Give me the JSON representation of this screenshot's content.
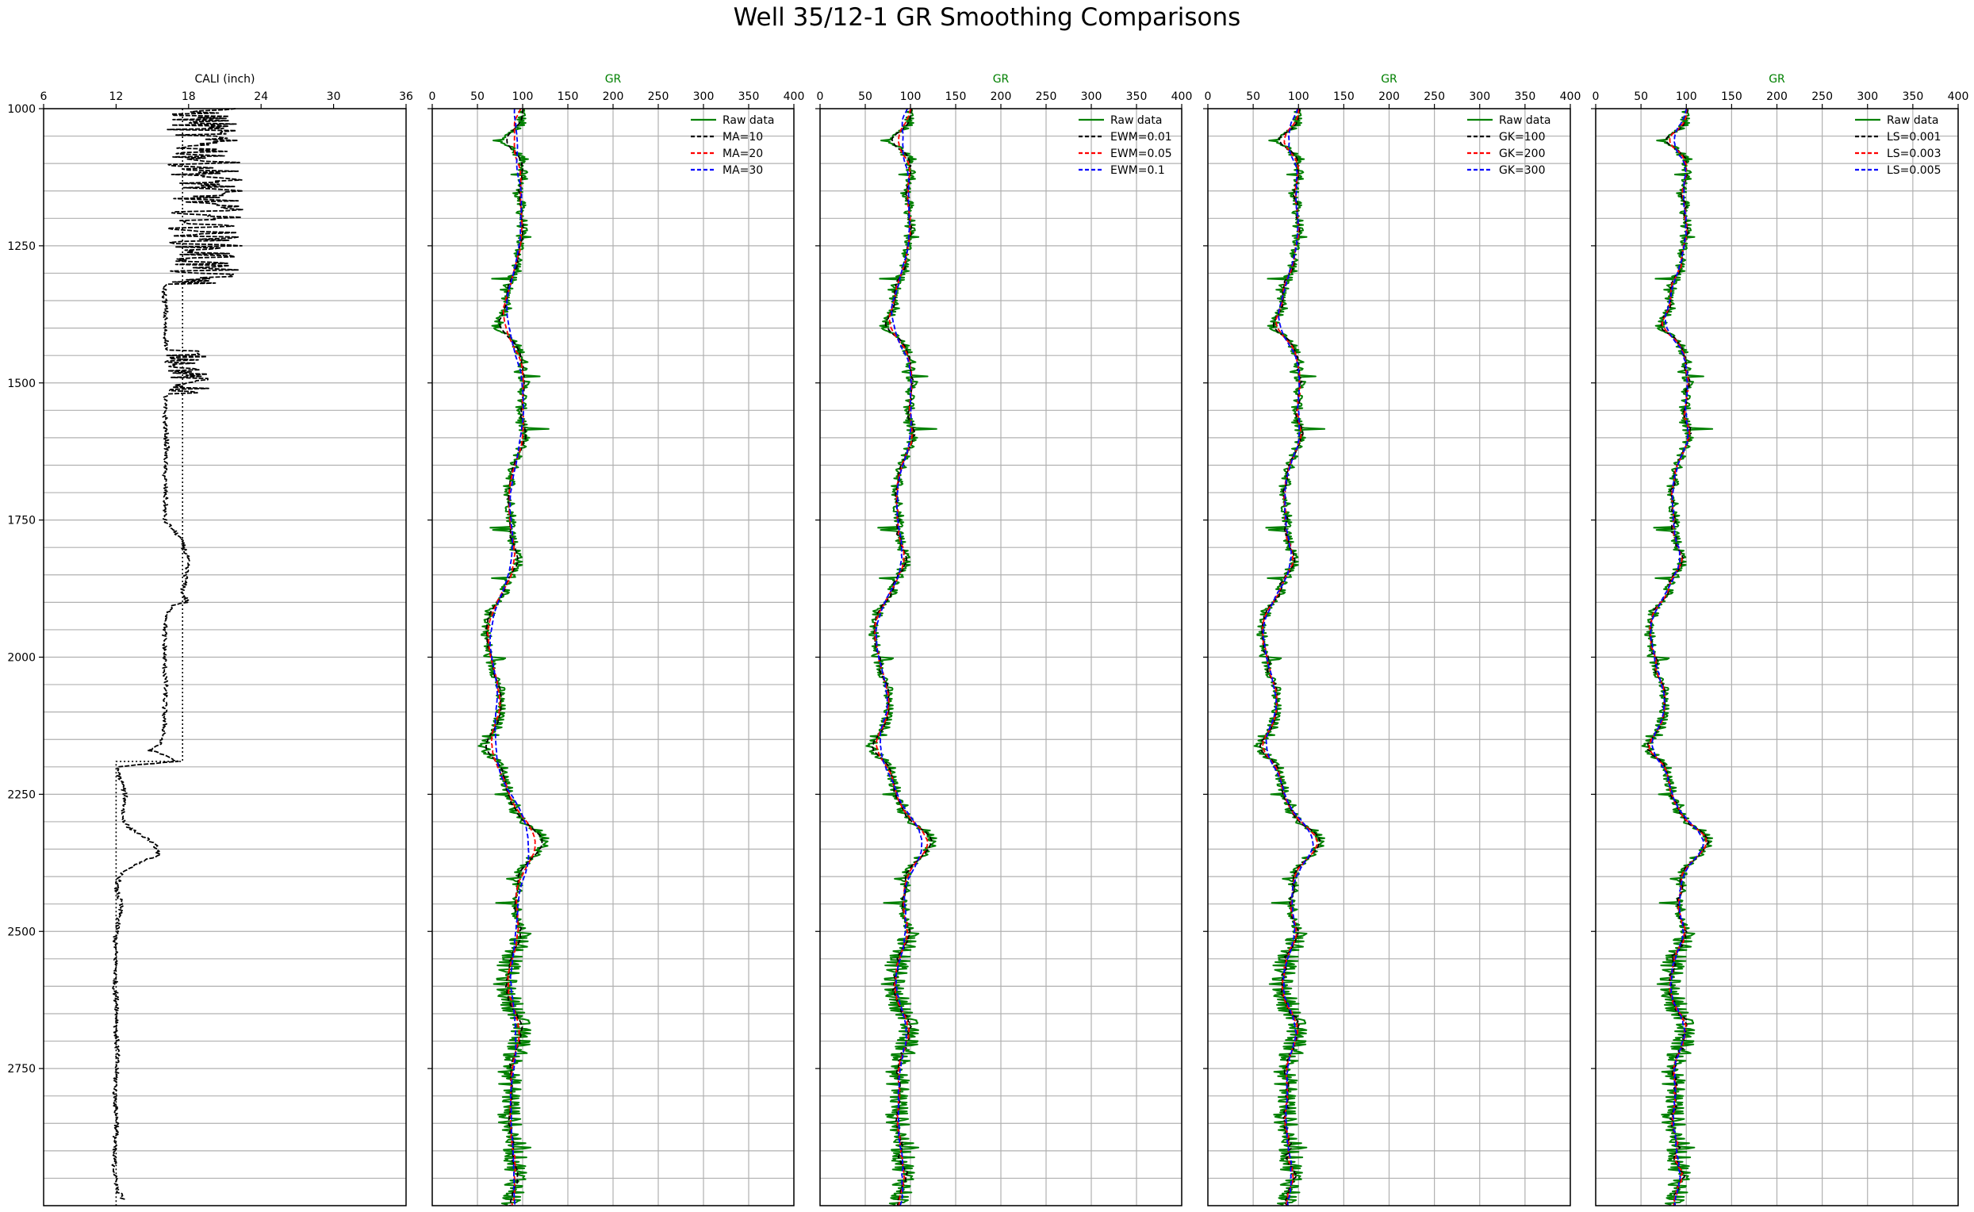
{
  "figure": {
    "title": "Well 35/12-1 GR Smoothing Comparisons"
  },
  "chart_data": [
    {
      "type": "line",
      "panel": "caliper",
      "xlabel": "CALI (inch)",
      "xlim": [
        6,
        36
      ],
      "xticks": [
        6,
        12,
        18,
        24,
        30,
        36
      ],
      "ylim": [
        3000,
        1000
      ],
      "yticks": [
        1000,
        1250,
        1500,
        1750,
        2000,
        2250,
        2500,
        2750
      ],
      "grid": "horizontal",
      "colors": {
        "line": "#000000"
      },
      "series": [
        {
          "values": [
            [
              1000,
              16.0
            ],
            [
              1025,
              16.2
            ],
            [
              1050,
              16.0
            ],
            [
              1080,
              16.5
            ],
            [
              1100,
              16.2
            ],
            [
              1130,
              16.8
            ],
            [
              1160,
              16.4
            ],
            [
              1190,
              16.6
            ],
            [
              1220,
              16.2
            ],
            [
              1250,
              16.5
            ],
            [
              1280,
              16.3
            ],
            [
              1300,
              16.0
            ],
            [
              1340,
              16.0
            ],
            [
              1370,
              16.1
            ],
            [
              1400,
              16.0
            ],
            [
              1430,
              16.2
            ],
            [
              1460,
              16.0
            ],
            [
              1500,
              16.3
            ],
            [
              1540,
              16.0
            ],
            [
              1580,
              16.1
            ],
            [
              1620,
              16.2
            ],
            [
              1660,
              16.0
            ],
            [
              1700,
              16.1
            ],
            [
              1750,
              16.0
            ],
            [
              1780,
              17.2
            ],
            [
              1800,
              17.6
            ],
            [
              1820,
              17.9
            ],
            [
              1850,
              17.8
            ],
            [
              1880,
              17.5
            ],
            [
              1900,
              17.9
            ],
            [
              1905,
              16.6
            ],
            [
              1930,
              16.2
            ],
            [
              1960,
              16.0
            ],
            [
              2000,
              16.0
            ],
            [
              2050,
              16.1
            ],
            [
              2100,
              16.0
            ],
            [
              2140,
              16.0
            ],
            [
              2160,
              15.5
            ],
            [
              2170,
              14.8
            ],
            [
              2180,
              16.2
            ],
            [
              2190,
              17.0
            ],
            [
              2200,
              12.0
            ],
            [
              2230,
              12.5
            ],
            [
              2260,
              12.8
            ],
            [
              2290,
              12.5
            ],
            [
              2310,
              13.0
            ],
            [
              2330,
              14.5
            ],
            [
              2345,
              15.3
            ],
            [
              2360,
              15.5
            ],
            [
              2375,
              14.0
            ],
            [
              2390,
              12.5
            ],
            [
              2420,
              12.0
            ],
            [
              2450,
              12.4
            ],
            [
              2480,
              12.2
            ],
            [
              2520,
              11.9
            ],
            [
              2560,
              12.0
            ],
            [
              2600,
              11.9
            ],
            [
              2640,
              12.1
            ],
            [
              2680,
              12.0
            ],
            [
              2720,
              12.1
            ],
            [
              2760,
              12.0
            ],
            [
              2800,
              11.9
            ],
            [
              2850,
              12.1
            ],
            [
              2900,
              11.8
            ],
            [
              2940,
              11.9
            ],
            [
              2970,
              12.1
            ],
            [
              2985,
              12.5
            ]
          ]
        }
      ]
    },
    {
      "type": "line",
      "panel": "moving-average",
      "xlabel": "GR",
      "xlim": [
        0,
        400
      ],
      "xticks": [
        0,
        50,
        100,
        150,
        200,
        250,
        300,
        350,
        400
      ],
      "ylim": [
        3000,
        1000
      ],
      "grid": "both",
      "legend_position": "top-right",
      "colors": {
        "raw": "#008000",
        "s1": "#000000",
        "s2": "#ff0000",
        "s3": "#0000ff"
      },
      "series_names": [
        "Raw data",
        "MA=10",
        "MA=20",
        "MA=30"
      ]
    },
    {
      "type": "line",
      "panel": "exponential-weighted",
      "xlabel": "GR",
      "xlim": [
        0,
        400
      ],
      "xticks": [
        0,
        50,
        100,
        150,
        200,
        250,
        300,
        350,
        400
      ],
      "ylim": [
        3000,
        1000
      ],
      "grid": "both",
      "legend_position": "top-right",
      "colors": {
        "raw": "#008000",
        "s1": "#000000",
        "s2": "#ff0000",
        "s3": "#0000ff"
      },
      "series_names": [
        "Raw data",
        "EWM=0.01",
        "EWM=0.05",
        "EWM=0.1"
      ]
    },
    {
      "type": "line",
      "panel": "gaussian-kernel",
      "xlabel": "GR",
      "xlim": [
        0,
        400
      ],
      "xticks": [
        0,
        50,
        100,
        150,
        200,
        250,
        300,
        350,
        400
      ],
      "ylim": [
        3000,
        1000
      ],
      "grid": "both",
      "legend_position": "top-right",
      "colors": {
        "raw": "#008000",
        "s1": "#000000",
        "s2": "#ff0000",
        "s3": "#0000ff"
      },
      "series_names": [
        "Raw data",
        "GK=100",
        "GK=200",
        "GK=300"
      ]
    },
    {
      "type": "line",
      "panel": "lowess",
      "xlabel": "GR",
      "xlim": [
        0,
        400
      ],
      "xticks": [
        0,
        50,
        100,
        150,
        200,
        250,
        300,
        350,
        400
      ],
      "ylim": [
        3000,
        1000
      ],
      "grid": "both",
      "legend_position": "top-right",
      "colors": {
        "raw": "#008000",
        "s1": "#000000",
        "s2": "#ff0000",
        "s3": "#0000ff"
      },
      "series_names": [
        "Raw data",
        "LS=0.001",
        "LS=0.003",
        "LS=0.005"
      ]
    }
  ],
  "gr_profile": [
    [
      1000,
      100
    ],
    [
      1030,
      98
    ],
    [
      1050,
      78
    ],
    [
      1070,
      85
    ],
    [
      1090,
      100
    ],
    [
      1120,
      102
    ],
    [
      1150,
      95
    ],
    [
      1180,
      98
    ],
    [
      1210,
      100
    ],
    [
      1250,
      97
    ],
    [
      1280,
      95
    ],
    [
      1300,
      92
    ],
    [
      1330,
      80
    ],
    [
      1360,
      85
    ],
    [
      1400,
      70
    ],
    [
      1420,
      88
    ],
    [
      1450,
      100
    ],
    [
      1500,
      102
    ],
    [
      1550,
      98
    ],
    [
      1600,
      102
    ],
    [
      1630,
      96
    ],
    [
      1650,
      90
    ],
    [
      1700,
      85
    ],
    [
      1750,
      88
    ],
    [
      1800,
      90
    ],
    [
      1820,
      98
    ],
    [
      1850,
      88
    ],
    [
      1880,
      80
    ],
    [
      1910,
      65
    ],
    [
      1950,
      60
    ],
    [
      2000,
      62
    ],
    [
      2030,
      70
    ],
    [
      2060,
      75
    ],
    [
      2100,
      75
    ],
    [
      2140,
      70
    ],
    [
      2160,
      55
    ],
    [
      2180,
      65
    ],
    [
      2200,
      78
    ],
    [
      2250,
      85
    ],
    [
      2280,
      90
    ],
    [
      2300,
      100
    ],
    [
      2320,
      120
    ],
    [
      2340,
      128
    ],
    [
      2355,
      118
    ],
    [
      2380,
      100
    ],
    [
      2400,
      95
    ],
    [
      2440,
      92
    ],
    [
      2480,
      95
    ],
    [
      2500,
      100
    ],
    [
      2530,
      95
    ],
    [
      2560,
      85
    ],
    [
      2600,
      80
    ],
    [
      2630,
      88
    ],
    [
      2660,
      95
    ],
    [
      2700,
      98
    ],
    [
      2730,
      90
    ],
    [
      2760,
      85
    ],
    [
      2800,
      88
    ],
    [
      2840,
      85
    ],
    [
      2880,
      90
    ],
    [
      2920,
      92
    ],
    [
      2950,
      95
    ],
    [
      2980,
      90
    ],
    [
      3000,
      85
    ]
  ]
}
